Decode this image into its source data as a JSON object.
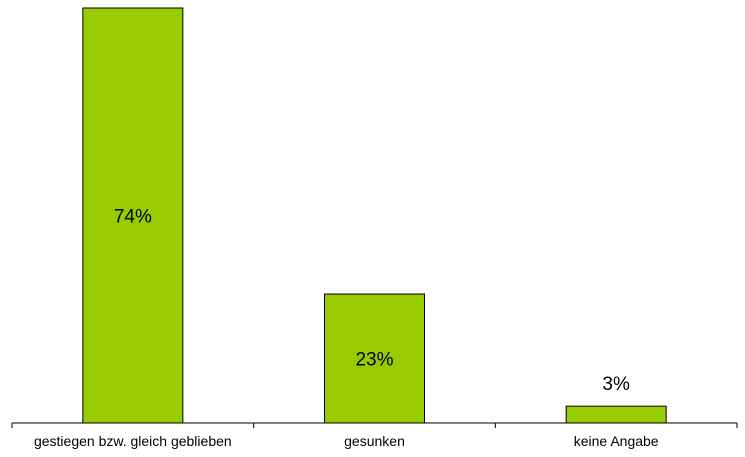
{
  "chart_data": {
    "type": "bar",
    "categories": [
      "gestiegen bzw. gleich geblieben",
      "gesunken",
      "keine Angabe"
    ],
    "values": [
      74,
      23,
      3
    ],
    "data_labels": [
      "74%",
      "23%",
      "3%"
    ],
    "title": "",
    "xlabel": "",
    "ylabel": "",
    "ylim": [
      0,
      74
    ],
    "grid": false,
    "legend": "none",
    "bar_color": "#99cc00",
    "bar_outline_color": "#000000"
  }
}
